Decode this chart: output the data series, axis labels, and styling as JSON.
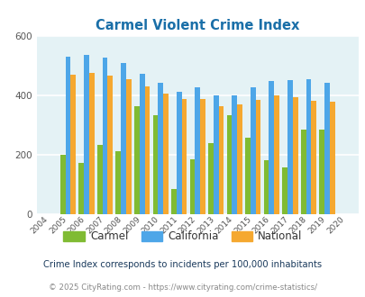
{
  "title": "Carmel Violent Crime Index",
  "years": [
    2004,
    2005,
    2006,
    2007,
    2008,
    2009,
    2010,
    2011,
    2012,
    2013,
    2014,
    2015,
    2016,
    2017,
    2018,
    2019,
    2020
  ],
  "carmel": [
    null,
    200,
    172,
    232,
    210,
    363,
    332,
    83,
    185,
    238,
    333,
    257,
    180,
    155,
    283,
    283,
    null
  ],
  "california": [
    null,
    530,
    535,
    526,
    508,
    472,
    440,
    411,
    425,
    400,
    400,
    425,
    448,
    450,
    452,
    440,
    null
  ],
  "national": [
    null,
    470,
    474,
    464,
    454,
    429,
    404,
    387,
    387,
    362,
    370,
    383,
    400,
    394,
    381,
    377,
    null
  ],
  "carmel_color": "#80bb33",
  "california_color": "#4da6e8",
  "national_color": "#f5a830",
  "plot_bg": "#e4f2f5",
  "ylim": [
    0,
    600
  ],
  "yticks": [
    0,
    200,
    400,
    600
  ],
  "legend_labels": [
    "Carmel",
    "California",
    "National"
  ],
  "subtitle": "Crime Index corresponds to incidents per 100,000 inhabitants",
  "footer": "© 2025 CityRating.com - https://www.cityrating.com/crime-statistics/",
  "title_color": "#1a6fa8",
  "subtitle_color": "#1a3a5c",
  "footer_color": "#888888",
  "footer_link_color": "#3388cc"
}
